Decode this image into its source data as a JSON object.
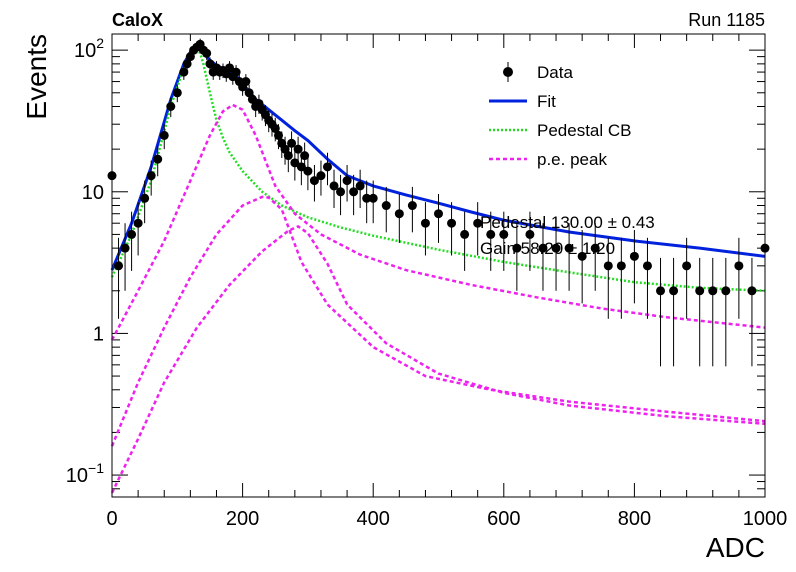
{
  "header": {
    "experiment": "CaloX",
    "run": "Run 1185"
  },
  "chart_data": {
    "type": "scatter",
    "title": "",
    "xlabel": "ADC",
    "ylabel": "Events",
    "xlim": [
      0,
      1000
    ],
    "ylim": [
      0.07,
      130
    ],
    "yscale": "log",
    "x_ticks": [
      0,
      200,
      400,
      600,
      800,
      1000
    ],
    "y_ticks": [
      {
        "value": 0.1,
        "label": "10",
        "exp": "−1"
      },
      {
        "value": 1,
        "label": "1",
        "exp": ""
      },
      {
        "value": 10,
        "label": "10",
        "exp": ""
      },
      {
        "value": 100,
        "label": "10",
        "exp": "2"
      }
    ],
    "grid": false,
    "legend_position": "top-right",
    "legend": [
      {
        "label": "Data",
        "style": "marker",
        "color": "#000000"
      },
      {
        "label": "Fit",
        "style": "solid",
        "color": "#0022dd"
      },
      {
        "label": "Pedestal CB",
        "style": "dotted",
        "color": "#22dd22"
      },
      {
        "label": "p.e. peak",
        "style": "dotted",
        "color": "#ee22ee"
      }
    ],
    "stats_annotation": [
      "Pedestal  130.00 ± 0.43",
      "Gain  58.20 ± 1.20"
    ],
    "series": [
      {
        "name": "Data",
        "kind": "points_with_errors",
        "color": "#000000",
        "x": [
          0,
          10,
          20,
          30,
          40,
          50,
          60,
          70,
          80,
          90,
          100,
          110,
          115,
          120,
          125,
          130,
          135,
          140,
          145,
          150,
          155,
          160,
          165,
          170,
          175,
          180,
          185,
          190,
          195,
          200,
          205,
          210,
          215,
          220,
          225,
          230,
          235,
          240,
          245,
          250,
          255,
          260,
          265,
          270,
          275,
          280,
          285,
          290,
          295,
          300,
          310,
          320,
          330,
          340,
          350,
          360,
          370,
          380,
          390,
          400,
          420,
          440,
          460,
          480,
          500,
          520,
          540,
          560,
          580,
          600,
          620,
          640,
          660,
          680,
          700,
          720,
          740,
          760,
          780,
          800,
          820,
          840,
          860,
          880,
          900,
          920,
          940,
          960,
          980,
          1000
        ],
        "y": [
          13,
          3,
          4,
          5,
          6,
          9,
          13,
          17,
          25,
          40,
          50,
          70,
          80,
          90,
          100,
          105,
          110,
          100,
          95,
          80,
          70,
          75,
          70,
          72,
          68,
          75,
          65,
          70,
          60,
          55,
          60,
          50,
          45,
          40,
          42,
          38,
          35,
          32,
          30,
          28,
          25,
          22,
          20,
          18,
          22,
          16,
          20,
          15,
          18,
          14,
          12,
          13,
          15,
          11,
          10,
          12,
          10,
          11,
          9,
          9,
          8,
          7,
          8,
          6,
          7,
          6,
          5,
          6,
          5,
          5,
          4,
          5,
          4,
          4,
          4,
          3.5,
          4,
          3,
          3,
          3.5,
          3,
          2,
          2,
          3,
          2,
          2,
          2,
          3,
          2,
          4
        ]
      },
      {
        "name": "Fit",
        "kind": "line",
        "color": "#0022dd",
        "x": [
          0,
          30,
          60,
          90,
          110,
          120,
          130,
          135,
          140,
          150,
          160,
          170,
          180,
          190,
          200,
          220,
          240,
          260,
          280,
          300,
          330,
          360,
          400,
          450,
          500,
          550,
          600,
          700,
          800,
          900,
          1000
        ],
        "y": [
          2.8,
          6,
          15,
          45,
          80,
          97,
          105,
          102,
          95,
          85,
          78,
          74,
          71,
          66,
          58,
          45,
          38,
          32,
          27,
          23,
          17,
          13,
          11,
          9.5,
          8.3,
          7.2,
          6.3,
          5.2,
          4.5,
          4.0,
          3.5
        ]
      },
      {
        "name": "Pedestal CB",
        "kind": "line",
        "color": "#22dd22",
        "x": [
          0,
          30,
          60,
          90,
          110,
          120,
          130,
          135,
          140,
          150,
          160,
          170,
          180,
          200,
          230,
          260,
          300,
          350,
          400,
          500,
          600,
          700,
          800,
          900,
          1000
        ],
        "y": [
          2.5,
          5,
          12,
          40,
          75,
          93,
          101,
          95,
          80,
          50,
          32,
          24,
          19,
          14,
          10,
          8,
          6.6,
          5.6,
          4.9,
          3.9,
          3.2,
          2.7,
          2.3,
          2.1,
          2.0
        ]
      },
      {
        "name": "p.e. peak",
        "kind": "line",
        "color": "#ee22ee",
        "x": [
          0,
          40,
          80,
          120,
          150,
          170,
          185,
          200,
          220,
          250,
          280,
          320,
          380,
          450,
          550,
          650,
          750,
          850,
          1000
        ],
        "y": [
          0.9,
          2,
          4.5,
          12,
          25,
          37,
          41,
          38,
          25,
          11,
          7,
          5,
          3.6,
          2.8,
          2.2,
          1.8,
          1.5,
          1.3,
          1.1
        ]
      },
      {
        "name": "p.e. peak",
        "kind": "line",
        "color": "#ee22ee",
        "x": [
          0,
          40,
          80,
          120,
          160,
          200,
          230,
          240,
          260,
          290,
          330,
          400,
          480,
          580,
          700,
          850,
          1000
        ],
        "y": [
          0.16,
          0.45,
          1.1,
          2.5,
          5,
          8,
          9.2,
          9.1,
          7.5,
          3.2,
          1.6,
          0.8,
          0.5,
          0.4,
          0.33,
          0.28,
          0.24
        ]
      },
      {
        "name": "p.e. peak",
        "kind": "line",
        "color": "#ee22ee",
        "x": [
          0,
          40,
          80,
          130,
          180,
          230,
          270,
          285,
          300,
          330,
          360,
          420,
          500,
          600,
          700,
          850,
          1000
        ],
        "y": [
          0.075,
          0.18,
          0.45,
          1.1,
          2.2,
          3.8,
          5.3,
          5.7,
          5.1,
          3.1,
          1.6,
          0.85,
          0.52,
          0.38,
          0.31,
          0.26,
          0.23
        ]
      }
    ]
  }
}
